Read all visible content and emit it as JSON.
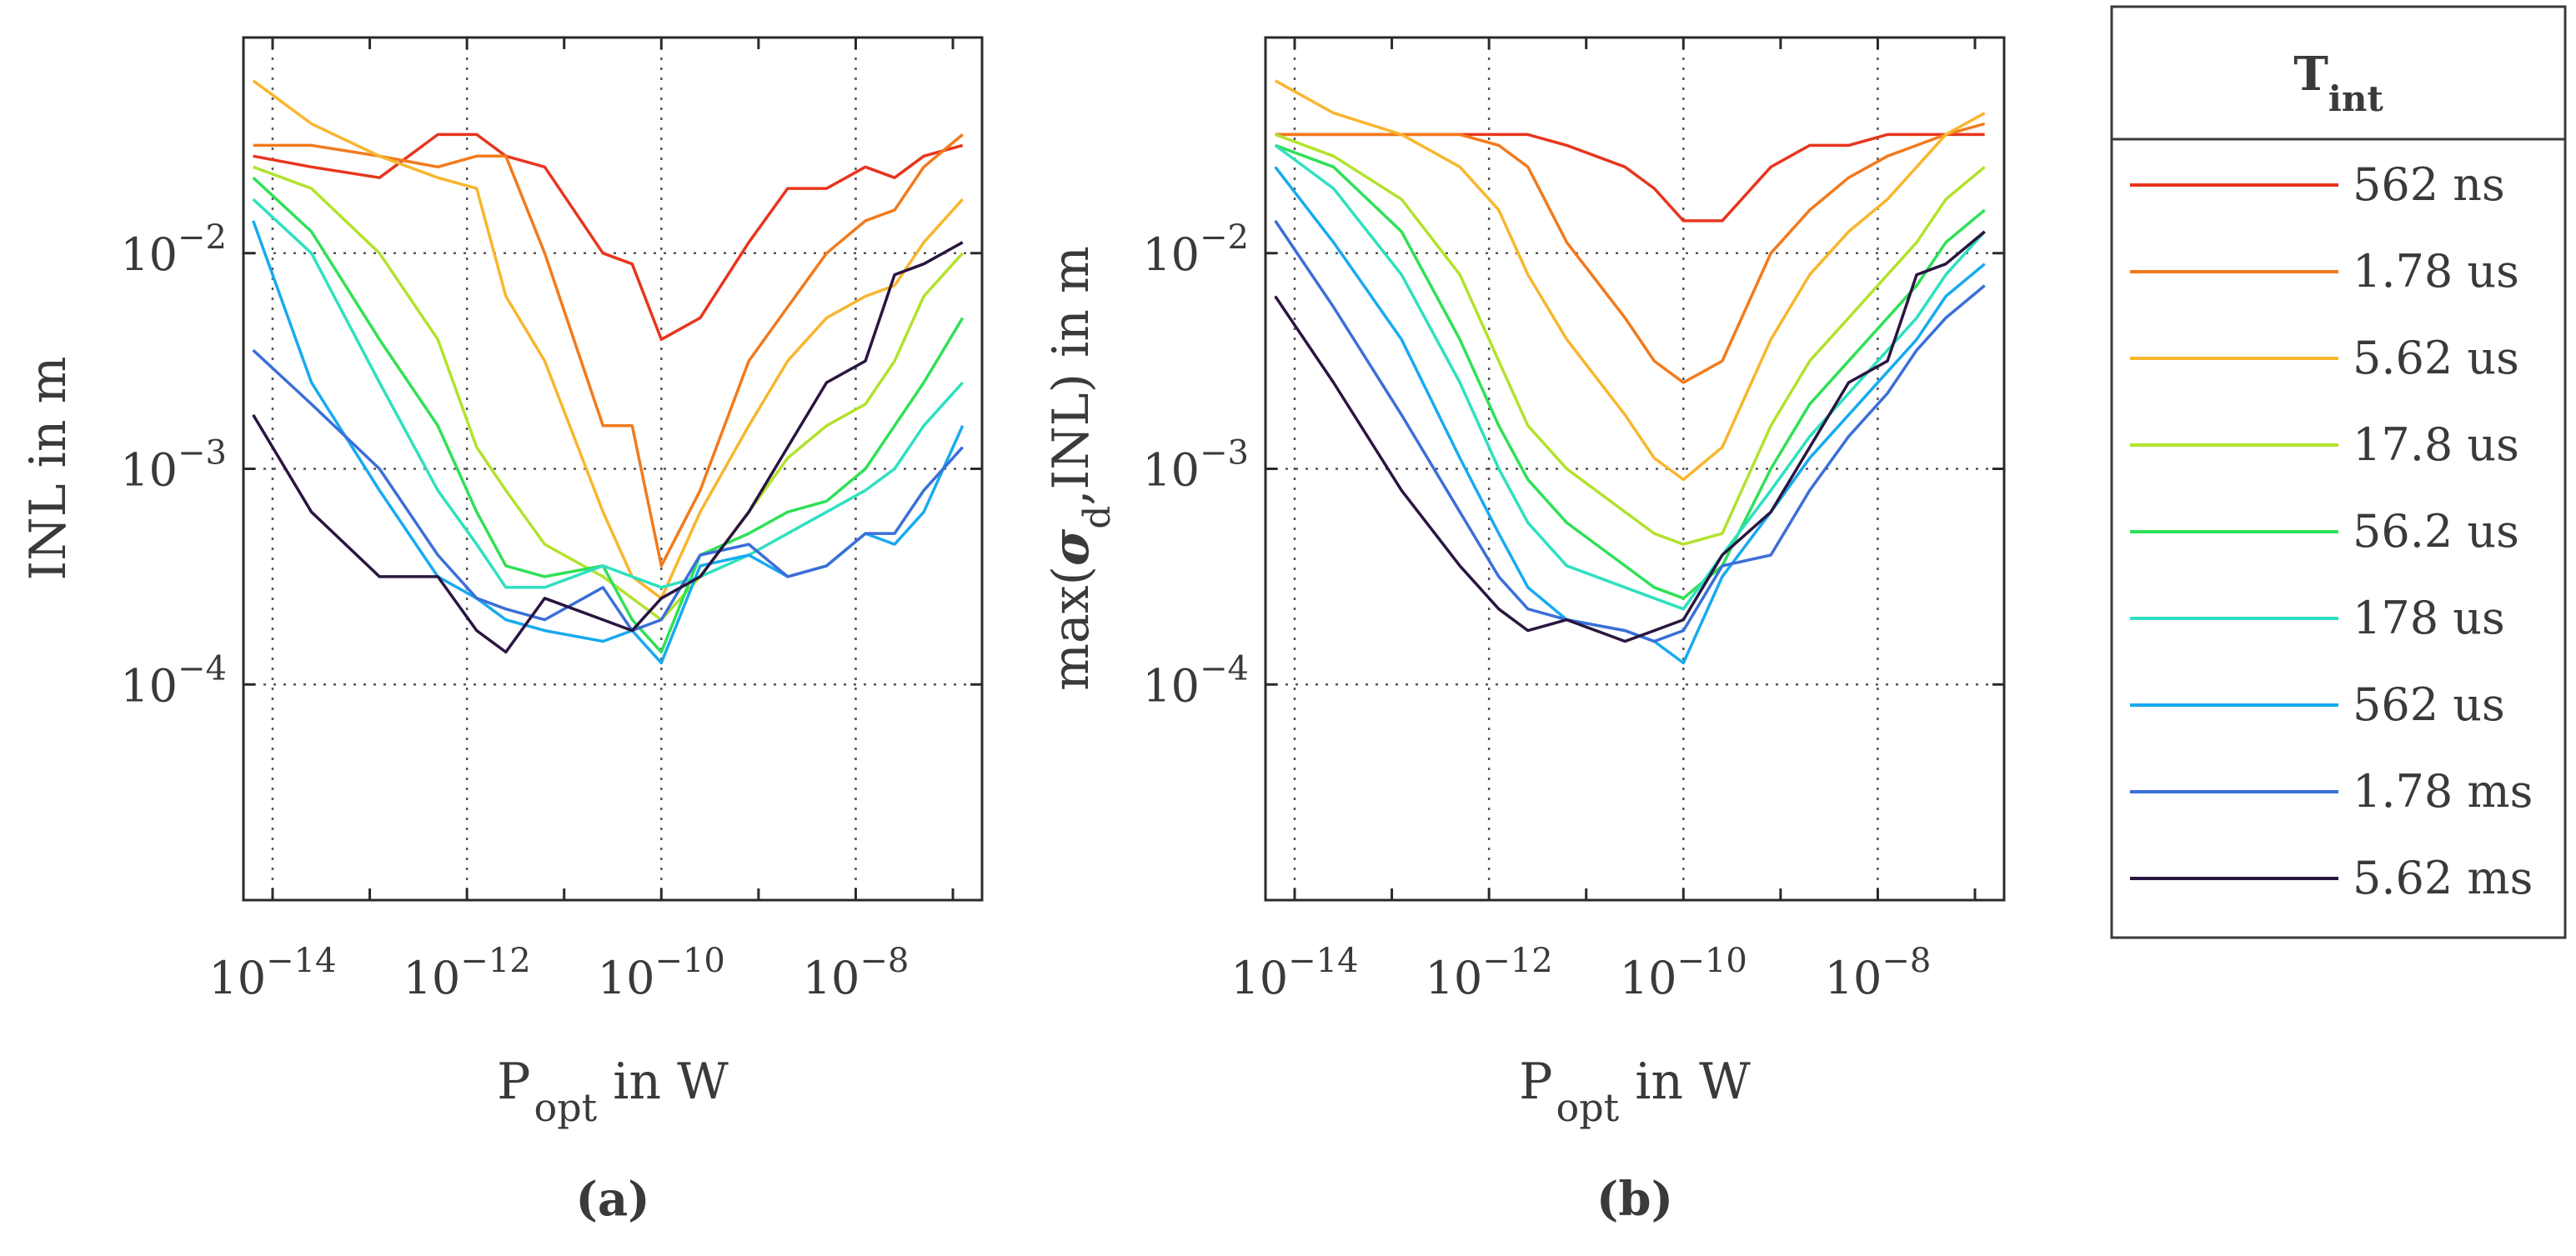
{
  "legend": {
    "title_main": "T",
    "title_sub": "int",
    "entries": [
      {
        "label": "562 ns",
        "color": "#e8351e"
      },
      {
        "label": "1.78 us",
        "color": "#f27a1c"
      },
      {
        "label": "5.62 us",
        "color": "#f8b62e"
      },
      {
        "label": "17.8 us",
        "color": "#b2e22d"
      },
      {
        "label": "56.2 us",
        "color": "#2fe057"
      },
      {
        "label": "178 us",
        "color": "#2ee0c0"
      },
      {
        "label": "562 us",
        "color": "#18aaf0"
      },
      {
        "label": "1.78 ms",
        "color": "#3b6fd8"
      },
      {
        "label": "5.62 ms",
        "color": "#2a1540"
      }
    ]
  },
  "chart_data": [
    {
      "type": "line",
      "panel_label": "(a)",
      "ylabel": "INL in m",
      "xlabel_main": "P",
      "xlabel_sub": "opt",
      "xlabel_rest": " in W",
      "xscale": "log",
      "yscale": "log",
      "xlim_exp": [
        -14.3,
        -6.7
      ],
      "ylim_exp": [
        -5.0,
        -1.0
      ],
      "xticks": [
        {
          "base": "10",
          "exp": "−14",
          "v": -14
        },
        {
          "base": "10",
          "exp": "−12",
          "v": -12
        },
        {
          "base": "10",
          "exp": "−10",
          "v": -10
        },
        {
          "base": "10",
          "exp": "−8",
          "v": -8
        }
      ],
      "yticks": [
        {
          "base": "10",
          "exp": "−2",
          "v": -2
        },
        {
          "base": "10",
          "exp": "−3",
          "v": -3
        },
        {
          "base": "10",
          "exp": "−4",
          "v": -4
        }
      ],
      "grid": true,
      "x_exp": [
        -14.2,
        -13.6,
        -12.9,
        -12.3,
        -11.9,
        -11.6,
        -11.2,
        -10.6,
        -10.3,
        -10.0,
        -9.6,
        -9.1,
        -8.7,
        -8.3,
        -7.9,
        -7.6,
        -7.3,
        -6.9
      ],
      "series": [
        {
          "name": "562 ns",
          "y_exp": [
            -1.55,
            -1.6,
            -1.65,
            -1.45,
            -1.45,
            -1.55,
            -1.6,
            -2.0,
            -2.05,
            -2.4,
            -2.3,
            -1.95,
            -1.7,
            -1.7,
            -1.6,
            -1.65,
            -1.55,
            -1.5
          ]
        },
        {
          "name": "1.78 us",
          "y_exp": [
            -1.5,
            -1.5,
            -1.55,
            -1.6,
            -1.55,
            -1.55,
            -2.0,
            -2.8,
            -2.8,
            -3.45,
            -3.1,
            -2.5,
            -2.25,
            -2.0,
            -1.85,
            -1.8,
            -1.6,
            -1.45
          ]
        },
        {
          "name": "5.62 us",
          "y_exp": [
            -1.2,
            -1.4,
            -1.55,
            -1.65,
            -1.7,
            -2.2,
            -2.5,
            -3.2,
            -3.5,
            -3.6,
            -3.2,
            -2.8,
            -2.5,
            -2.3,
            -2.2,
            -2.15,
            -1.95,
            -1.75
          ]
        },
        {
          "name": "17.8 us",
          "y_exp": [
            -1.6,
            -1.7,
            -2.0,
            -2.4,
            -2.9,
            -3.1,
            -3.35,
            -3.5,
            -3.6,
            -3.7,
            -3.5,
            -3.2,
            -2.95,
            -2.8,
            -2.7,
            -2.5,
            -2.2,
            -2.0
          ]
        },
        {
          "name": "56.2 us",
          "y_exp": [
            -1.65,
            -1.9,
            -2.4,
            -2.8,
            -3.2,
            -3.45,
            -3.5,
            -3.45,
            -3.7,
            -3.85,
            -3.4,
            -3.3,
            -3.2,
            -3.15,
            -3.0,
            -2.8,
            -2.6,
            -2.3
          ]
        },
        {
          "name": "178 us",
          "y_exp": [
            -1.75,
            -2.0,
            -2.6,
            -3.1,
            -3.35,
            -3.55,
            -3.55,
            -3.45,
            -3.5,
            -3.55,
            -3.5,
            -3.4,
            -3.3,
            -3.2,
            -3.1,
            -3.0,
            -2.8,
            -2.6
          ]
        },
        {
          "name": "562 us",
          "y_exp": [
            -1.85,
            -2.6,
            -3.1,
            -3.5,
            -3.6,
            -3.7,
            -3.75,
            -3.8,
            -3.75,
            -3.9,
            -3.45,
            -3.4,
            -3.5,
            -3.45,
            -3.3,
            -3.35,
            -3.2,
            -2.8
          ]
        },
        {
          "name": "1.78 ms",
          "y_exp": [
            -2.45,
            -2.7,
            -3.0,
            -3.4,
            -3.6,
            -3.65,
            -3.7,
            -3.55,
            -3.75,
            -3.7,
            -3.4,
            -3.35,
            -3.5,
            -3.45,
            -3.3,
            -3.3,
            -3.1,
            -2.9
          ]
        },
        {
          "name": "5.62 ms",
          "y_exp": [
            -2.75,
            -3.2,
            -3.5,
            -3.5,
            -3.75,
            -3.85,
            -3.6,
            -3.7,
            -3.75,
            -3.6,
            -3.5,
            -3.2,
            -2.9,
            -2.6,
            -2.5,
            -2.1,
            -2.05,
            -1.95
          ]
        }
      ]
    },
    {
      "type": "line",
      "panel_label": "(b)",
      "ylabel_pre": "max(",
      "ylabel_sigma": "σ",
      "ylabel_sub": "d",
      "ylabel_post": ",INL) in m",
      "xlabel_main": "P",
      "xlabel_sub": "opt",
      "xlabel_rest": " in W",
      "xscale": "log",
      "yscale": "log",
      "xlim_exp": [
        -14.3,
        -6.7
      ],
      "ylim_exp": [
        -5.0,
        -1.0
      ],
      "xticks": [
        {
          "base": "10",
          "exp": "−14",
          "v": -14
        },
        {
          "base": "10",
          "exp": "−12",
          "v": -12
        },
        {
          "base": "10",
          "exp": "−10",
          "v": -10
        },
        {
          "base": "10",
          "exp": "−8",
          "v": -8
        }
      ],
      "yticks": [
        {
          "base": "10",
          "exp": "−2",
          "v": -2
        },
        {
          "base": "10",
          "exp": "−3",
          "v": -3
        },
        {
          "base": "10",
          "exp": "−4",
          "v": -4
        }
      ],
      "grid": true,
      "x_exp": [
        -14.2,
        -13.6,
        -12.9,
        -12.3,
        -11.9,
        -11.6,
        -11.2,
        -10.6,
        -10.3,
        -10.0,
        -9.6,
        -9.1,
        -8.7,
        -8.3,
        -7.9,
        -7.6,
        -7.3,
        -6.9
      ],
      "series": [
        {
          "name": "562 ns",
          "y_exp": [
            -1.45,
            -1.45,
            -1.45,
            -1.45,
            -1.45,
            -1.45,
            -1.5,
            -1.6,
            -1.7,
            -1.85,
            -1.85,
            -1.6,
            -1.5,
            -1.5,
            -1.45,
            -1.45,
            -1.45,
            -1.45
          ]
        },
        {
          "name": "1.78 us",
          "y_exp": [
            -1.45,
            -1.45,
            -1.45,
            -1.45,
            -1.5,
            -1.6,
            -1.95,
            -2.3,
            -2.5,
            -2.6,
            -2.5,
            -2.0,
            -1.8,
            -1.65,
            -1.55,
            -1.5,
            -1.45,
            -1.4
          ]
        },
        {
          "name": "5.62 us",
          "y_exp": [
            -1.2,
            -1.35,
            -1.45,
            -1.6,
            -1.8,
            -2.1,
            -2.4,
            -2.75,
            -2.95,
            -3.05,
            -2.9,
            -2.4,
            -2.1,
            -1.9,
            -1.75,
            -1.6,
            -1.45,
            -1.35
          ]
        },
        {
          "name": "17.8 us",
          "y_exp": [
            -1.45,
            -1.55,
            -1.75,
            -2.1,
            -2.5,
            -2.8,
            -3.0,
            -3.2,
            -3.3,
            -3.35,
            -3.3,
            -2.8,
            -2.5,
            -2.3,
            -2.1,
            -1.95,
            -1.75,
            -1.6
          ]
        },
        {
          "name": "56.2 us",
          "y_exp": [
            -1.5,
            -1.6,
            -1.9,
            -2.4,
            -2.8,
            -3.05,
            -3.25,
            -3.45,
            -3.55,
            -3.6,
            -3.45,
            -3.0,
            -2.7,
            -2.5,
            -2.3,
            -2.15,
            -1.95,
            -1.8
          ]
        },
        {
          "name": "178 us",
          "y_exp": [
            -1.5,
            -1.7,
            -2.1,
            -2.6,
            -3.0,
            -3.25,
            -3.45,
            -3.55,
            -3.6,
            -3.65,
            -3.4,
            -3.1,
            -2.85,
            -2.65,
            -2.45,
            -2.3,
            -2.1,
            -1.9
          ]
        },
        {
          "name": "562 us",
          "y_exp": [
            -1.6,
            -1.95,
            -2.4,
            -2.95,
            -3.3,
            -3.55,
            -3.7,
            -3.75,
            -3.8,
            -3.9,
            -3.5,
            -3.2,
            -2.95,
            -2.75,
            -2.55,
            -2.4,
            -2.2,
            -2.05
          ]
        },
        {
          "name": "1.78 ms",
          "y_exp": [
            -1.85,
            -2.25,
            -2.75,
            -3.2,
            -3.5,
            -3.65,
            -3.7,
            -3.75,
            -3.8,
            -3.75,
            -3.45,
            -3.4,
            -3.1,
            -2.85,
            -2.65,
            -2.45,
            -2.3,
            -2.15
          ]
        },
        {
          "name": "5.62 ms",
          "y_exp": [
            -2.2,
            -2.6,
            -3.1,
            -3.45,
            -3.65,
            -3.75,
            -3.7,
            -3.8,
            -3.75,
            -3.7,
            -3.4,
            -3.2,
            -2.9,
            -2.6,
            -2.5,
            -2.1,
            -2.05,
            -1.9
          ]
        }
      ]
    }
  ]
}
